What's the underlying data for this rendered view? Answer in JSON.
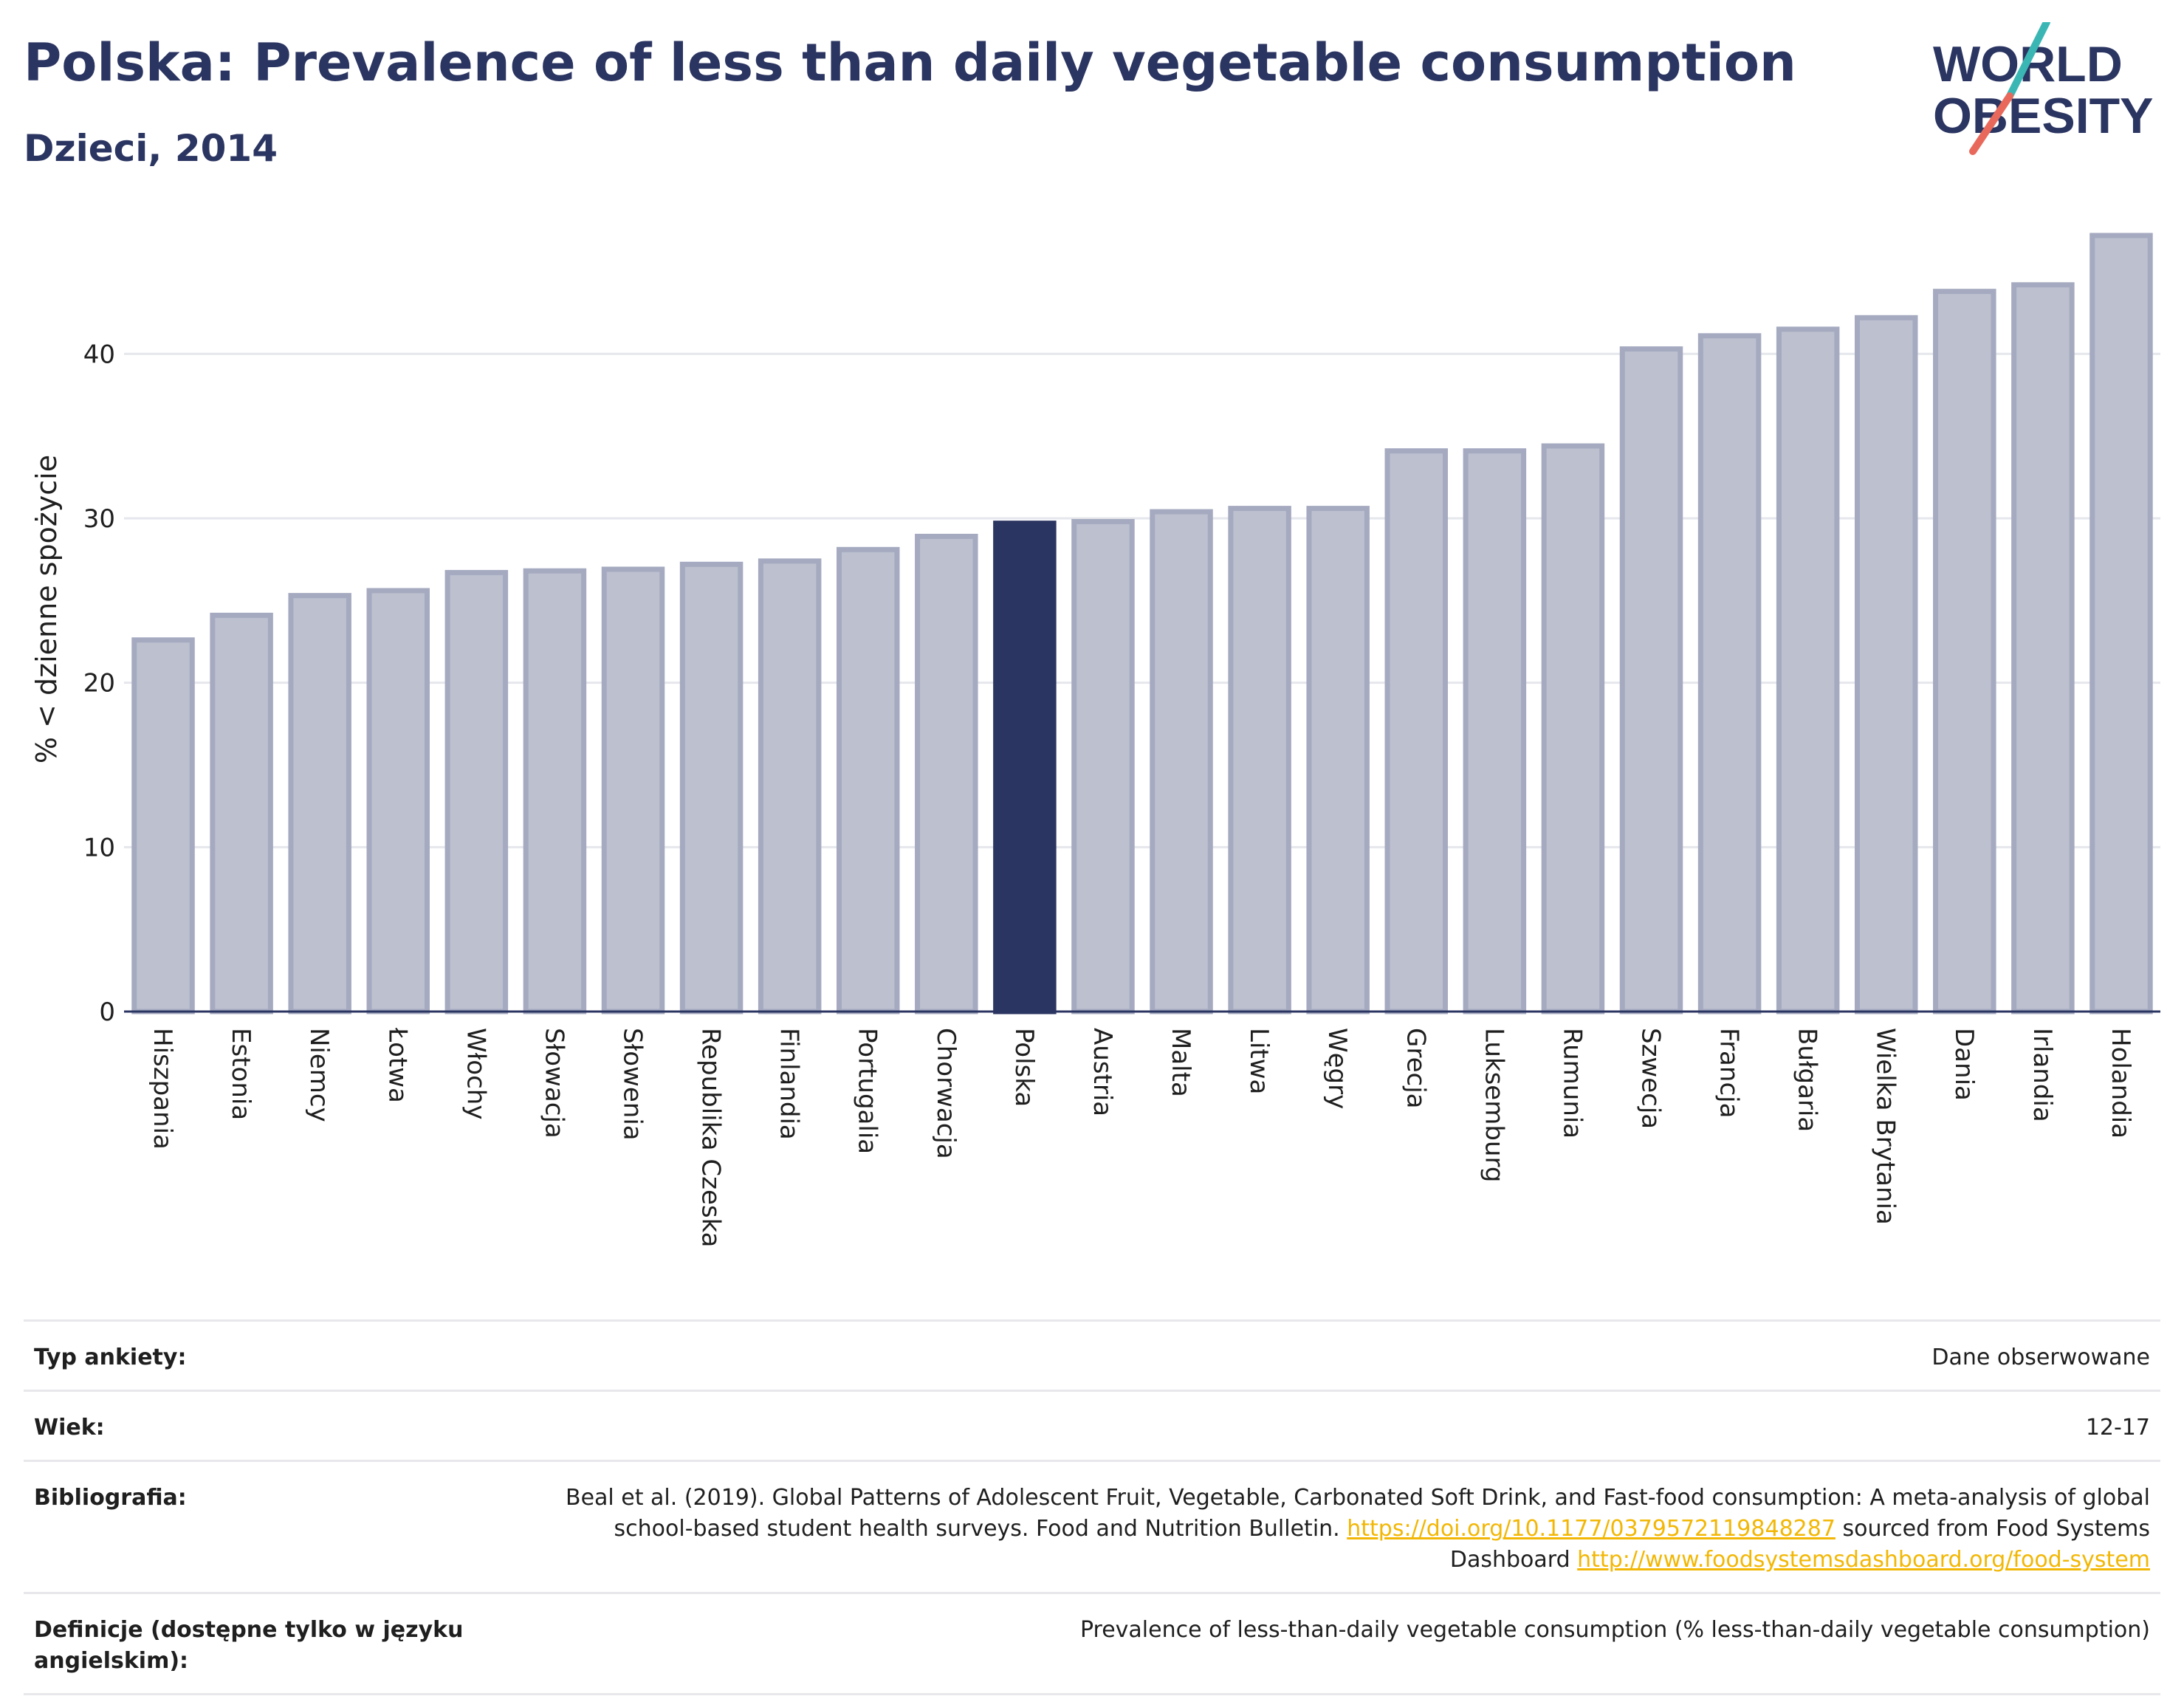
{
  "header": {
    "title": "Polska: Prevalence of less than daily vegetable consumption",
    "subtitle": "Dzieci, 2014"
  },
  "logo": {
    "line1": "WORLD",
    "line2": "OBESITY",
    "colors": {
      "text": "#2b3561",
      "slash_red": "#e8695b",
      "slash_teal": "#3ab7b4"
    }
  },
  "colors": {
    "bar_default": "#bcc0cf",
    "bar_default_stroke": "#a5aac0",
    "bar_highlight": "#2b3561",
    "grid": "#e6e7ec",
    "axis": "#2b3561"
  },
  "chart_data": {
    "type": "bar",
    "title": "Polska: Prevalence of less than daily vegetable consumption",
    "subtitle": "Dzieci, 2014",
    "xlabel": "",
    "ylabel": "% < dzienne spożycie",
    "ylim": [
      0,
      48.5
    ],
    "yticks": [
      0,
      10,
      20,
      30,
      40
    ],
    "grid": true,
    "highlight": "Polska",
    "categories": [
      "Hiszpania",
      "Estonia",
      "Niemcy",
      "Łotwa",
      "Włochy",
      "Słowacja",
      "Słowenia",
      "Republika Czeska",
      "Finlandia",
      "Portugalia",
      "Chorwacja",
      "Polska",
      "Austria",
      "Malta",
      "Litwa",
      "Węgry",
      "Grecja",
      "Luksemburg",
      "Rumunia",
      "Szwecja",
      "Francja",
      "Bułgaria",
      "Wielka Brytania",
      "Dania",
      "Irlandia",
      "Holandia"
    ],
    "values": [
      22.6,
      24.1,
      25.3,
      25.6,
      26.7,
      26.8,
      26.9,
      27.2,
      27.4,
      28.1,
      28.9,
      29.7,
      29.8,
      30.4,
      30.6,
      30.6,
      34.1,
      34.1,
      34.4,
      40.3,
      41.1,
      41.5,
      42.2,
      43.8,
      44.2,
      47.2
    ]
  },
  "meta": {
    "rows": [
      {
        "label": "Typ ankiety:",
        "value": "Dane obserwowane"
      },
      {
        "label": "Wiek:",
        "value": "12-17"
      },
      {
        "label": "Bibliografia:",
        "value_pre": "Beal et al. (2019). Global Patterns of Adolescent Fruit, Vegetable, Carbonated Soft Drink, and Fast-food consumption: A meta-analysis of global school-based student health surveys. Food and Nutrition Bulletin. ",
        "link1": "https://doi.org/10.1177/0379572119848287",
        "value_mid": " sourced from Food Systems Dashboard ",
        "link2": "http://www.foodsystemsdashboard.org/food-system"
      },
      {
        "label": "Definicje (dostępne tylko w języku angielskim):",
        "value": "Prevalence of less-than-daily vegetable consumption (% less-than-daily vegetable consumption)"
      }
    ]
  }
}
